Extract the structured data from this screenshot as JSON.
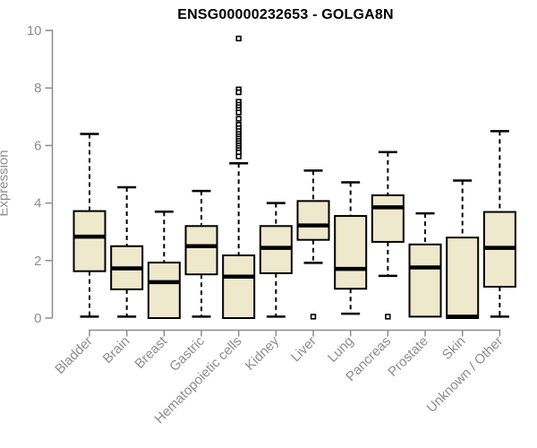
{
  "chart_data": {
    "type": "boxplot",
    "title": "ENSG00000232653 - GOLGA8N",
    "ylabel": "Expression",
    "xlabel": "",
    "ylim": [
      0,
      10
    ],
    "yticks": [
      0,
      2,
      4,
      6,
      8,
      10
    ],
    "grid": false,
    "legend": "none",
    "colors": {
      "box_fill": "#EEE8CD",
      "box_stroke": "#000000",
      "median_color": "#000000",
      "whisker_color": "#000000",
      "axis_color": "#8C8C8C",
      "title_color": "#000000",
      "background": "#FFFFFF"
    },
    "categories": [
      "Bladder",
      "Brain",
      "Breast",
      "Gastric",
      "Hematopoietic cells",
      "Kidney",
      "Liver",
      "Lung",
      "Pancreas",
      "Prostate",
      "Skin",
      "Unknown / Other"
    ],
    "series": [
      {
        "name": "Bladder",
        "whisker_low": 0.05,
        "q1": 1.63,
        "median": 2.83,
        "q3": 3.72,
        "whisker_high": 6.4,
        "outliers": []
      },
      {
        "name": "Brain",
        "whisker_low": 0.05,
        "q1": 1.0,
        "median": 1.73,
        "q3": 2.5,
        "whisker_high": 4.55,
        "outliers": []
      },
      {
        "name": "Breast",
        "whisker_low": 0.0,
        "q1": 0.0,
        "median": 1.25,
        "q3": 1.93,
        "whisker_high": 3.7,
        "outliers": []
      },
      {
        "name": "Gastric",
        "whisker_low": 0.05,
        "q1": 1.52,
        "median": 2.5,
        "q3": 3.2,
        "whisker_high": 4.42,
        "outliers": []
      },
      {
        "name": "Hematopoietic cells",
        "whisker_low": 0.0,
        "q1": 0.0,
        "median": 1.44,
        "q3": 2.18,
        "whisker_high": 5.38,
        "outliers": [
          9.72,
          7.95,
          7.85,
          7.52,
          7.42,
          7.33,
          7.24,
          7.15,
          6.93,
          6.72,
          6.6,
          6.5,
          6.4,
          6.32,
          6.24,
          6.16,
          6.08,
          6.0,
          5.92,
          5.84,
          5.76,
          5.62
        ]
      },
      {
        "name": "Kidney",
        "whisker_low": 0.05,
        "q1": 1.56,
        "median": 2.44,
        "q3": 3.2,
        "whisker_high": 4.0,
        "outliers": []
      },
      {
        "name": "Liver",
        "whisker_low": 1.92,
        "q1": 2.72,
        "median": 3.22,
        "q3": 4.07,
        "whisker_high": 5.13,
        "outliers": [
          0.05
        ]
      },
      {
        "name": "Lung",
        "whisker_low": 0.15,
        "q1": 1.02,
        "median": 1.71,
        "q3": 3.55,
        "whisker_high": 4.72,
        "outliers": []
      },
      {
        "name": "Pancreas",
        "whisker_low": 1.47,
        "q1": 2.65,
        "median": 3.85,
        "q3": 4.27,
        "whisker_high": 5.77,
        "outliers": [
          0.05
        ]
      },
      {
        "name": "Prostate",
        "whisker_low": 0.05,
        "q1": 0.05,
        "median": 1.76,
        "q3": 2.56,
        "whisker_high": 3.64,
        "outliers": []
      },
      {
        "name": "Skin",
        "whisker_low": 0.0,
        "q1": 0.0,
        "median": 0.05,
        "q3": 2.8,
        "whisker_high": 4.78,
        "outliers": []
      },
      {
        "name": "Unknown / Other",
        "whisker_low": 0.05,
        "q1": 1.09,
        "median": 2.44,
        "q3": 3.69,
        "whisker_high": 6.5,
        "outliers": []
      }
    ]
  }
}
